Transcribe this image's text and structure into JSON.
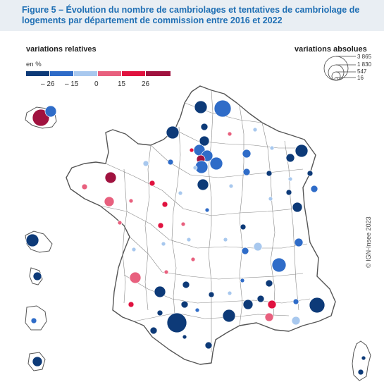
{
  "title": "Figure 5 – Évolution du nombre de cambriolages et tentatives de cambriolage de logements par département de commission entre 2016 et 2022",
  "legend_relative": {
    "title": "variations relatives",
    "unit": "en %",
    "ticks": [
      "– 26",
      "– 15",
      "0",
      "15",
      "26"
    ],
    "colors": [
      "#0d3a78",
      "#2f6cc8",
      "#a8c8ee",
      "#e8607e",
      "#e0123f",
      "#a0123f"
    ]
  },
  "legend_absolute": {
    "title": "variations absolues",
    "values": [
      "3 865",
      "1 830",
      "547",
      "16"
    ]
  },
  "credit": "© IGN-Insee 2023",
  "map": {
    "region": "France métropolitaine et DOM",
    "overlay_shapes": [
      {
        "label": "DOM-1",
        "color": "#2f6cc8"
      },
      {
        "label": "DOM-2",
        "color": "#0d3a78"
      }
    ]
  }
}
